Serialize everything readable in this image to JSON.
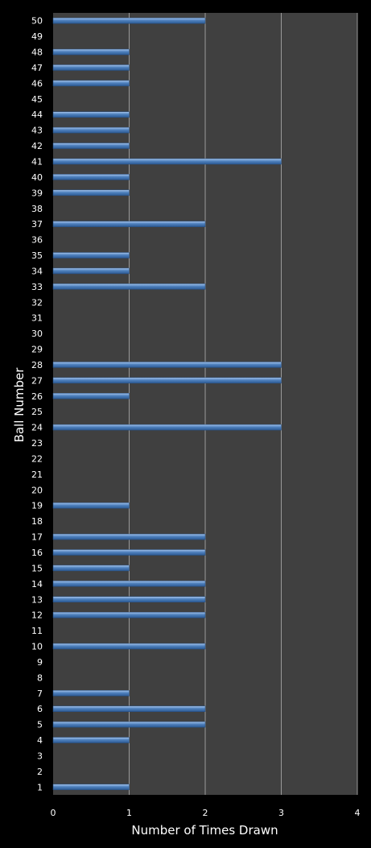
{
  "chart_data": {
    "type": "bar",
    "orientation": "horizontal",
    "xlabel": "Number of Times Drawn",
    "ylabel": "Ball Number",
    "xlim": [
      0,
      4
    ],
    "x_ticks": [
      "0",
      "1",
      "2",
      "3",
      "4"
    ],
    "grid": true,
    "colors": {
      "background": "#000000",
      "plot_area": "#404040",
      "bar": "#4f81bd",
      "bar_highlight": "#a9c7ee",
      "gridline": "#9a9a9a",
      "text": "#ffffff"
    },
    "categories": [
      "1",
      "2",
      "3",
      "4",
      "5",
      "6",
      "7",
      "8",
      "9",
      "10",
      "11",
      "12",
      "13",
      "14",
      "15",
      "16",
      "17",
      "18",
      "19",
      "20",
      "21",
      "22",
      "23",
      "24",
      "25",
      "26",
      "27",
      "28",
      "29",
      "30",
      "31",
      "32",
      "33",
      "34",
      "35",
      "36",
      "37",
      "38",
      "39",
      "40",
      "41",
      "42",
      "43",
      "44",
      "45",
      "46",
      "47",
      "48",
      "49",
      "50"
    ],
    "values": [
      1,
      0,
      0,
      1,
      2,
      2,
      1,
      0,
      0,
      2,
      0,
      2,
      2,
      2,
      1,
      2,
      2,
      0,
      1,
      0,
      0,
      0,
      0,
      3,
      0,
      1,
      3,
      3,
      0,
      0,
      0,
      0,
      2,
      1,
      1,
      0,
      2,
      0,
      1,
      1,
      3,
      1,
      1,
      1,
      0,
      1,
      1,
      1,
      0,
      2
    ]
  }
}
